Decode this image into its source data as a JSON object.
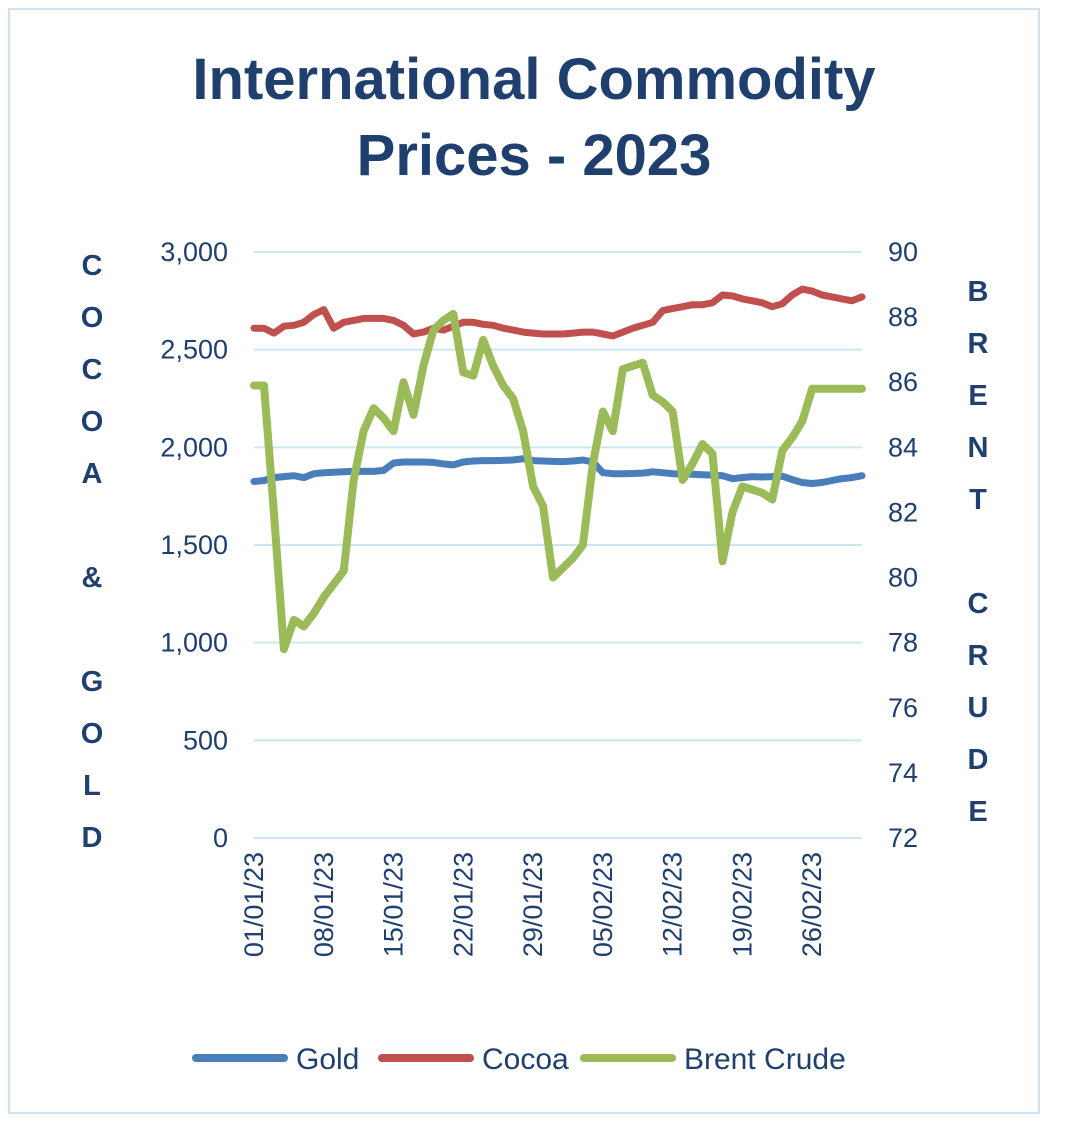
{
  "chart_data": {
    "type": "line",
    "title_lines": [
      "International Commodity",
      "Prices - 2023"
    ],
    "y_left_label": "COCOA & GOLD",
    "y_right_label": "BRENT CRUDE",
    "y_left_ticks": [
      "3,000",
      "2,500",
      "2,000",
      "1,500",
      "1,000",
      "500",
      "0"
    ],
    "y_right_ticks": [
      "90",
      "88",
      "86",
      "84",
      "82",
      "80",
      "78",
      "76",
      "74",
      "72"
    ],
    "x_tick_labels": [
      "01/01/23",
      "08/01/23",
      "15/01/23",
      "22/01/23",
      "29/01/23",
      "05/02/23",
      "12/02/23",
      "19/02/23",
      "26/02/23"
    ],
    "ylim_left": [
      0,
      3000
    ],
    "ylim_right": [
      72,
      90
    ],
    "grid": true,
    "legend_position": "bottom",
    "x": [
      "01/01/23",
      "02/01/23",
      "03/01/23",
      "04/01/23",
      "05/01/23",
      "06/01/23",
      "07/01/23",
      "08/01/23",
      "09/01/23",
      "10/01/23",
      "11/01/23",
      "12/01/23",
      "13/01/23",
      "14/01/23",
      "15/01/23",
      "16/01/23",
      "17/01/23",
      "18/01/23",
      "19/01/23",
      "20/01/23",
      "21/01/23",
      "22/01/23",
      "23/01/23",
      "24/01/23",
      "25/01/23",
      "26/01/23",
      "27/01/23",
      "28/01/23",
      "29/01/23",
      "30/01/23",
      "31/01/23",
      "01/02/23",
      "02/02/23",
      "03/02/23",
      "04/02/23",
      "05/02/23",
      "06/02/23",
      "07/02/23",
      "08/02/23",
      "09/02/23",
      "10/02/23",
      "11/02/23",
      "12/02/23",
      "13/02/23",
      "14/02/23",
      "15/02/23",
      "16/02/23",
      "17/02/23",
      "18/02/23",
      "19/02/23",
      "20/02/23",
      "21/02/23",
      "22/02/23",
      "23/02/23",
      "24/02/23",
      "25/02/23",
      "26/02/23",
      "27/02/23",
      "28/02/23",
      "01/03/23",
      "02/03/23",
      "03/03/23"
    ],
    "series": [
      {
        "name": "Gold",
        "color": "#4a7ebb",
        "axis": "left",
        "values": [
          1825,
          1830,
          1845,
          1850,
          1855,
          1845,
          1865,
          1870,
          1872,
          1875,
          1877,
          1878,
          1877,
          1882,
          1920,
          1925,
          1925,
          1925,
          1923,
          1915,
          1910,
          1925,
          1930,
          1932,
          1932,
          1933,
          1935,
          1942,
          1932,
          1930,
          1928,
          1927,
          1930,
          1935,
          1925,
          1870,
          1865,
          1865,
          1866,
          1868,
          1875,
          1870,
          1865,
          1863,
          1862,
          1860,
          1858,
          1855,
          1840,
          1845,
          1850,
          1848,
          1850,
          1852,
          1835,
          1820,
          1815,
          1820,
          1830,
          1840,
          1845,
          1855
        ]
      },
      {
        "name": "Cocoa",
        "color": "#c0504d",
        "axis": "left",
        "values": [
          2610,
          2610,
          2585,
          2620,
          2625,
          2640,
          2680,
          2705,
          2610,
          2640,
          2650,
          2660,
          2660,
          2660,
          2650,
          2625,
          2580,
          2590,
          2610,
          2600,
          2620,
          2640,
          2640,
          2630,
          2625,
          2610,
          2600,
          2590,
          2585,
          2580,
          2580,
          2580,
          2585,
          2590,
          2590,
          2580,
          2570,
          2590,
          2610,
          2625,
          2640,
          2700,
          2710,
          2720,
          2730,
          2730,
          2740,
          2780,
          2775,
          2760,
          2750,
          2740,
          2720,
          2735,
          2780,
          2810,
          2800,
          2780,
          2770,
          2760,
          2750,
          2770
        ]
      },
      {
        "name": "Brent Crude",
        "color": "#9bbb59",
        "axis": "right",
        "values": [
          85.9,
          85.9,
          82.0,
          77.8,
          78.7,
          78.5,
          78.9,
          79.4,
          79.8,
          80.2,
          83.0,
          84.5,
          85.2,
          84.9,
          84.5,
          86.0,
          85.0,
          86.5,
          87.6,
          87.9,
          88.1,
          86.3,
          86.2,
          87.3,
          86.5,
          85.9,
          85.5,
          84.5,
          82.8,
          82.2,
          80.0,
          80.3,
          80.6,
          81.0,
          83.5,
          85.1,
          84.5,
          86.4,
          86.5,
          86.6,
          85.6,
          85.4,
          85.1,
          83.0,
          83.5,
          84.1,
          83.8,
          80.5,
          82.0,
          82.8,
          82.7,
          82.6,
          82.4,
          83.9,
          84.3,
          84.8,
          85.8,
          85.8,
          85.8,
          85.8,
          85.8,
          85.8
        ]
      }
    ]
  }
}
